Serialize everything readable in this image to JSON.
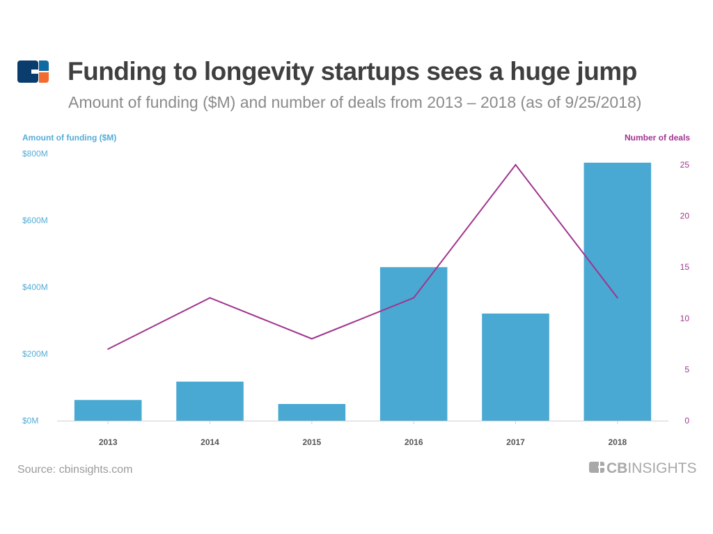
{
  "header": {
    "title": "Funding to longevity startups sees a huge jump",
    "subtitle": "Amount of funding ($M) and number of deals from 2013 – 2018 (as of 9/25/2018)"
  },
  "footer": {
    "source": "Source: cbinsights.com",
    "brand": "CBINSIGHTS"
  },
  "colors": {
    "bars": "#4aa9d2",
    "line": "#a0338f",
    "logo_navy": "#0a3d6e",
    "logo_blue": "#0f6aa3",
    "logo_orange": "#f26b2f"
  },
  "chart_data": {
    "type": "bar+line",
    "categories": [
      "2013",
      "2014",
      "2015",
      "2016",
      "2017",
      "2018"
    ],
    "series": [
      {
        "name": "Amount of funding ($M)",
        "type": "bar",
        "axis": "left",
        "values": [
          62,
          117,
          50,
          460,
          321,
          773
        ]
      },
      {
        "name": "Number of deals",
        "type": "line",
        "axis": "right",
        "values": [
          7,
          12,
          8,
          12,
          25,
          12
        ]
      }
    ],
    "ylabel": "Amount of funding ($M)",
    "y2label": "Number of deals",
    "ylim": [
      0,
      800
    ],
    "y2lim": [
      0,
      26
    ],
    "yticks": [
      "$0M",
      "$200M",
      "$400M",
      "$600M",
      "$800M"
    ],
    "ytick_values": [
      0,
      200,
      400,
      600,
      800
    ],
    "y2ticks": [
      "0",
      "5",
      "10",
      "15",
      "20",
      "25"
    ],
    "y2tick_values": [
      0,
      5,
      10,
      15,
      20,
      25
    ],
    "grid": false
  }
}
